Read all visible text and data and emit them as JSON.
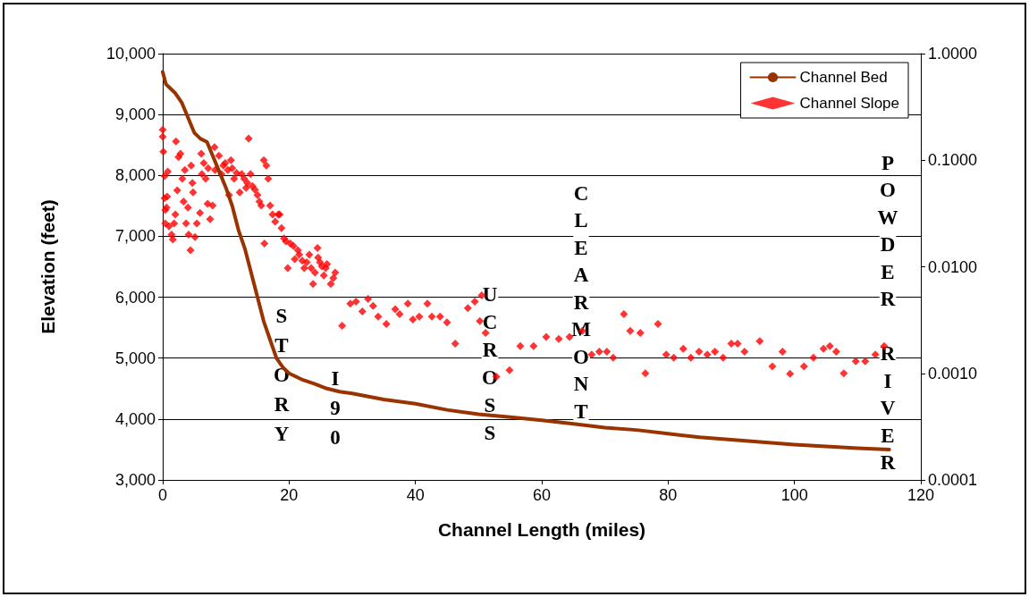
{
  "chart_data": {
    "type": "line",
    "xlabel": "Channel Length (miles)",
    "ylabel": "Elevation (feet)",
    "xlim": [
      0,
      120
    ],
    "xticks": [
      0,
      20,
      40,
      60,
      80,
      100,
      120
    ],
    "ylim": [
      3000,
      10000
    ],
    "yticks": [
      {
        "value": 3000,
        "label": "3,000"
      },
      {
        "value": 4000,
        "label": "4,000"
      },
      {
        "value": 5000,
        "label": "5,000"
      },
      {
        "value": 6000,
        "label": "6,000"
      },
      {
        "value": 7000,
        "label": "7,000"
      },
      {
        "value": 8000,
        "label": "8,000"
      },
      {
        "value": 9000,
        "label": "9,000"
      },
      {
        "value": 10000,
        "label": "10,000"
      }
    ],
    "y2lim": [
      0.0001,
      1
    ],
    "y2ticks": [
      {
        "value": 0.0001,
        "label": "0.0001"
      },
      {
        "value": 0.001,
        "label": "0.0010"
      },
      {
        "value": 0.01,
        "label": "0.0100"
      },
      {
        "value": 0.1,
        "label": "0.1000"
      },
      {
        "value": 1,
        "label": "1.0000"
      }
    ],
    "log": "y2",
    "grid": "y",
    "legend": "top right",
    "series": [
      {
        "name": "Channel Bed",
        "color": "#993300",
        "marker": "none",
        "line_style": "solid",
        "x": [
          0,
          0.5,
          2,
          3,
          4,
          5,
          6,
          7,
          8,
          9,
          10,
          11,
          12,
          13,
          14,
          15,
          16,
          17,
          18,
          19,
          20,
          22,
          24,
          26,
          28,
          30,
          35,
          40,
          45,
          50,
          55,
          60,
          65,
          70,
          75,
          80,
          85,
          90,
          95,
          100,
          105,
          110,
          115
        ],
        "values": [
          9700,
          9500,
          9350,
          9200,
          8950,
          8700,
          8600,
          8550,
          8300,
          8050,
          7800,
          7500,
          7100,
          6800,
          6400,
          6000,
          5600,
          5300,
          5000,
          4850,
          4750,
          4650,
          4580,
          4500,
          4450,
          4420,
          4320,
          4250,
          4150,
          4080,
          4030,
          3980,
          3920,
          3860,
          3820,
          3760,
          3700,
          3660,
          3620,
          3580,
          3550,
          3520,
          3500
        ]
      },
      {
        "name": "Channel Slope",
        "type": "scatter",
        "axis": "y2",
        "color": "#ff0000",
        "marker": "diamond",
        "x": [
          0,
          0,
          0.1,
          0.3,
          0.3,
          0.4,
          0.4,
          0.6,
          0.7,
          0.8,
          1.0,
          1.4,
          1.6,
          1.8,
          2.0,
          2.1,
          2.3,
          2.5,
          2.8,
          3.1,
          3.3,
          3.5,
          3.7,
          4.0,
          4.1,
          4.4,
          4.5,
          4.7,
          4.8,
          5.1,
          5.4,
          5.9,
          6.1,
          6.2,
          6.5,
          6.8,
          7.1,
          7.2,
          7.5,
          7.9,
          8.2,
          8.3,
          8.9,
          9.3,
          9.6,
          9.9,
          10.3,
          10.5,
          10.8,
          11.0,
          11.3,
          11.7,
          12.2,
          12.5,
          12.9,
          13.2,
          13.4,
          13.6,
          13.9,
          14.2,
          14.6,
          15.0,
          15.3,
          15.6,
          16.0,
          16.1,
          16.4,
          16.7,
          17.0,
          17.4,
          17.8,
          18.3,
          18.5,
          18.8,
          19.2,
          19.5,
          19.8,
          20.2,
          20.7,
          20.9,
          21.4,
          21.6,
          22.1,
          22.4,
          22.8,
          23.2,
          23.5,
          23.8,
          24.1,
          24.5,
          24.6,
          24.9,
          25.2,
          25.5,
          25.8,
          26.0,
          26.6,
          27.0,
          27.3,
          28.4,
          29.7,
          30.6,
          31.6,
          32.5,
          33.3,
          34.1,
          35.4,
          36.8,
          37.5,
          38.8,
          39.6,
          40.6,
          41.9,
          42.6,
          43.9,
          45.0,
          46.3,
          48.3,
          49.4,
          50.5,
          50.2,
          51.1,
          52.8,
          54.9,
          56.6,
          58.7,
          60.7,
          62.7,
          64.4,
          66.4,
          67.9,
          69.1,
          70.3,
          71.3,
          73.0,
          74.0,
          75.6,
          76.4,
          78.4,
          79.7,
          80.9,
          82.4,
          83.6,
          84.9,
          86.2,
          87.4,
          88.7,
          90.0,
          91.0,
          92.1,
          94.5,
          96.5,
          98.1,
          99.3,
          101.5,
          103.0,
          104.6,
          105.6,
          106.6,
          107.8,
          109.7,
          111.2,
          112.8,
          114.2
        ],
        "values": [
          0.193,
          0.166,
          0.12,
          0.071,
          0.044,
          0.034,
          0.0255,
          0.036,
          0.0455,
          0.078,
          0.024,
          0.02,
          0.018,
          0.0255,
          0.031,
          0.15,
          0.052,
          0.107,
          0.115,
          0.067,
          0.041,
          0.081,
          0.0255,
          0.036,
          0.02,
          0.0143,
          0.089,
          0.061,
          0.05,
          0.019,
          0.0255,
          0.032,
          0.115,
          0.074,
          0.094,
          0.067,
          0.039,
          0.084,
          0.028,
          0.0375,
          0.132,
          0.081,
          0.11,
          0.074,
          0.089,
          0.094,
          0.081,
          0.047,
          0.1,
          0.084,
          0.067,
          0.076,
          0.05,
          0.074,
          0.067,
          0.055,
          0.061,
          0.16,
          0.074,
          0.057,
          0.053,
          0.047,
          0.041,
          0.0375,
          0.1,
          0.0165,
          0.089,
          0.067,
          0.0375,
          0.031,
          0.0265,
          0.031,
          0.031,
          0.023,
          0.0185,
          0.0173,
          0.0097,
          0.0165,
          0.0157,
          0.0118,
          0.0143,
          0.013,
          0.0114,
          0.0097,
          0.011,
          0.013,
          0.0097,
          0.0069,
          0.0088,
          0.015,
          0.0122,
          0.011,
          0.0101,
          0.0083,
          0.0097,
          0.0106,
          0.0069,
          0.0078,
          0.0088,
          0.0028,
          0.0045,
          0.0047,
          0.0038,
          0.005,
          0.0043,
          0.0034,
          0.0029,
          0.004,
          0.0036,
          0.0045,
          0.0032,
          0.0034,
          0.0045,
          0.0034,
          0.0034,
          0.003,
          0.0019,
          0.0041,
          0.0047,
          0.0054,
          0.0031,
          0.0024,
          0.00093,
          0.00107,
          0.0018,
          0.0018,
          0.0022,
          0.0021,
          0.0022,
          0.0025,
          0.0015,
          0.0016,
          0.0016,
          0.0014,
          0.0036,
          0.0025,
          0.0024,
          0.001,
          0.0029,
          0.0015,
          0.0014,
          0.0017,
          0.0014,
          0.0016,
          0.0015,
          0.0016,
          0.0014,
          0.0019,
          0.0019,
          0.0016,
          0.002,
          0.00116,
          0.0016,
          0.00099,
          0.00116,
          0.0014,
          0.0017,
          0.0018,
          0.0016,
          0.001,
          0.0013,
          0.0013,
          0.0015,
          0.0018
        ]
      }
    ],
    "annotations": [
      "STORY",
      "I90",
      "UCROSS",
      "CLEARMONT",
      "POWDER RIVER"
    ]
  }
}
